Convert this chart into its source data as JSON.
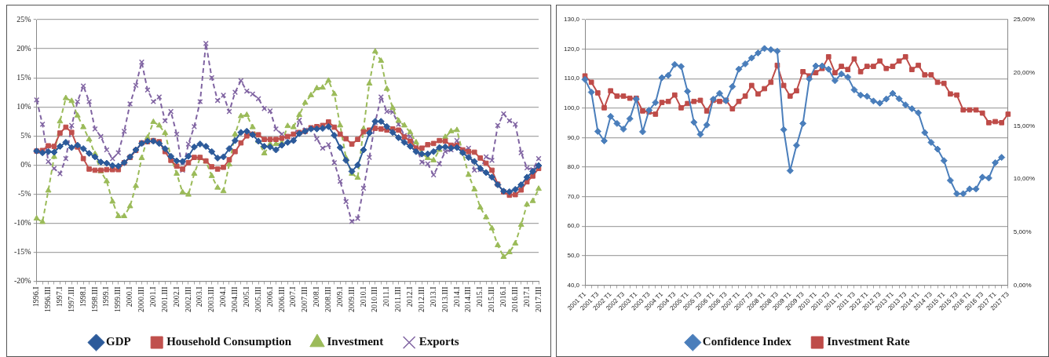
{
  "chart_data": [
    {
      "type": "line",
      "grid": "y",
      "legend": "bottom",
      "categories": [
        "1996.I",
        null,
        "1996.III",
        null,
        "1997.I",
        null,
        "1997.III",
        null,
        "1998.I",
        null,
        "1998.III",
        null,
        "1999.I",
        null,
        "1999.III",
        null,
        "2000.I",
        null,
        "2000.III",
        null,
        "2001.I",
        null,
        "2001.III",
        null,
        "2002.I",
        null,
        "2002.III",
        null,
        "2003.I",
        null,
        "2003.III",
        null,
        "2004.I",
        null,
        "2004.III",
        null,
        "2005.I",
        null,
        "2005.III",
        null,
        "2006.I",
        null,
        "2006.III",
        null,
        "2007.I",
        null,
        "2007.III",
        null,
        "2008.I",
        null,
        "2008.III",
        null,
        "2009.I",
        null,
        "2009.III",
        null,
        "2010.I",
        null,
        "2010.III",
        null,
        "2011.I",
        null,
        "2011.III",
        null,
        "2012.I",
        null,
        "2012.III",
        null,
        "2013.I",
        null,
        "2013.III",
        null,
        "2014.I",
        null,
        "2014.III",
        null,
        "2015.I",
        null,
        "2015.III",
        null,
        "2016.I",
        null,
        "2016.III",
        null,
        "2017.I",
        null,
        "2017.III"
      ],
      "ylim": [
        -20,
        25
      ],
      "yticks": [
        {
          "value": -20,
          "label": "-20%"
        },
        {
          "value": -15,
          "label": "-15%"
        },
        {
          "value": -10,
          "label": "-10%"
        },
        {
          "value": -5,
          "label": "-5%"
        },
        {
          "value": 0,
          "label": "0%"
        },
        {
          "value": 5,
          "label": "5%"
        },
        {
          "value": 10,
          "label": "10%"
        },
        {
          "value": 15,
          "label": "15%"
        },
        {
          "value": 20,
          "label": "20%"
        },
        {
          "value": 25,
          "label": "25%"
        }
      ],
      "series": [
        {
          "name": "GDP",
          "color": "#2c5a9a",
          "marker": "diamond",
          "line_style": "solid",
          "values": [
            2.4,
            2.1,
            2.3,
            2.2,
            3.2,
            3.9,
            3.0,
            3.4,
            2.8,
            2.0,
            1.4,
            0.5,
            0.3,
            -0.1,
            -0.2,
            0.4,
            1.4,
            2.6,
            3.7,
            4.1,
            4.1,
            3.7,
            2.8,
            1.5,
            0.7,
            0.6,
            1.5,
            3.1,
            3.6,
            3.2,
            2.3,
            1.2,
            1.4,
            2.8,
            4.2,
            5.6,
            5.8,
            5.2,
            4.1,
            3.2,
            3.1,
            2.6,
            3.4,
            3.9,
            4.2,
            5.4,
            5.8,
            6.2,
            6.2,
            6.3,
            6.6,
            5.1,
            3.0,
            0.8,
            -1.1,
            0.0,
            2.6,
            5.5,
            7.5,
            7.5,
            6.6,
            5.6,
            4.7,
            3.9,
            3.2,
            2.3,
            1.9,
            1.9,
            2.3,
            3.0,
            3.1,
            2.9,
            3.0,
            2.1,
            1.3,
            0.6,
            -0.6,
            -1.3,
            -2.1,
            -3.4,
            -4.5,
            -4.6,
            -4.2,
            -3.4,
            -2.1,
            -1.1,
            -0.1
          ]
        },
        {
          "name": "Household Consumption",
          "color": "#c0504d",
          "marker": "square",
          "line_style": "solid",
          "values": [
            2.4,
            2.5,
            3.3,
            3.2,
            5.5,
            6.5,
            5.6,
            3.1,
            1.1,
            -0.7,
            -0.9,
            -0.9,
            -0.8,
            -0.8,
            -0.8,
            0.4,
            1.3,
            2.5,
            3.8,
            4.0,
            4.2,
            4.0,
            2.3,
            0.8,
            -0.2,
            -0.7,
            0.4,
            1.3,
            1.3,
            0.7,
            -0.3,
            -0.7,
            -0.4,
            0.9,
            2.3,
            3.8,
            5.0,
            5.3,
            5.2,
            4.4,
            4.4,
            4.4,
            4.6,
            4.9,
            5.3,
            5.6,
            5.8,
            6.4,
            6.6,
            6.8,
            7.4,
            6.5,
            5.3,
            4.5,
            3.6,
            4.4,
            5.7,
            6.0,
            6.3,
            6.2,
            6.0,
            6.2,
            6.0,
            4.8,
            4.1,
            2.9,
            2.9,
            3.5,
            3.7,
            4.2,
            4.1,
            3.4,
            3.4,
            2.6,
            2.3,
            2.2,
            1.2,
            0.3,
            -0.9,
            -3.3,
            -4.6,
            -5.2,
            -5.1,
            -4.3,
            -2.9,
            -1.9,
            -0.6
          ]
        },
        {
          "name": "Investment",
          "color": "#9bbb59",
          "marker": "triangle",
          "line_style": "dashed",
          "values": [
            -9.2,
            -9.8,
            -4.4,
            1.4,
            7.5,
            11.5,
            11.0,
            8.5,
            6.5,
            4.4,
            1.9,
            -1.1,
            -2.8,
            -6.3,
            -8.8,
            -8.8,
            -7.1,
            -3.6,
            1.2,
            4.7,
            7.4,
            6.8,
            5.5,
            1.4,
            -1.5,
            -4.7,
            -5.1,
            -1.5,
            1.2,
            0.6,
            -1.9,
            -3.9,
            -4.5,
            0.1,
            5.3,
            8.4,
            8.6,
            6.5,
            4.1,
            2.0,
            3.6,
            3.6,
            3.8,
            6.7,
            6.5,
            8.6,
            10.7,
            12.0,
            13.2,
            13.3,
            14.5,
            12.2,
            6.8,
            1.2,
            -1.5,
            -2.2,
            6.2,
            14.0,
            19.5,
            17.9,
            13.1,
            9.8,
            7.6,
            6.8,
            5.6,
            3.9,
            2.0,
            1.2,
            0.8,
            2.6,
            4.8,
            5.8,
            6.0,
            2.1,
            -1.7,
            -4.2,
            -7.3,
            -9.0,
            -10.9,
            -13.8,
            -15.8,
            -15.0,
            -13.5,
            -10.3,
            -6.8,
            -6.2,
            -4.1
          ]
        },
        {
          "name": "Exports",
          "color": "#8064a2",
          "marker": "cross",
          "line_style": "dashed",
          "values": [
            11.2,
            7.0,
            0.6,
            -0.6,
            -1.5,
            1.1,
            6.8,
            10.9,
            13.6,
            10.9,
            6.2,
            4.9,
            2.6,
            1.1,
            2.1,
            5.8,
            10.5,
            13.7,
            17.7,
            12.9,
            10.9,
            11.7,
            7.6,
            9.2,
            5.3,
            -0.9,
            3.6,
            6.6,
            10.9,
            20.9,
            15.0,
            11.1,
            12.0,
            9.2,
            12.5,
            14.5,
            12.7,
            12.2,
            11.4,
            9.7,
            9.3,
            6.2,
            5.3,
            4.8,
            4.3,
            7.7,
            6.0,
            6.4,
            4.5,
            2.9,
            3.5,
            0.4,
            -2.8,
            -6.3,
            -9.7,
            -9.2,
            -4.0,
            1.3,
            7.3,
            11.7,
            9.2,
            9.1,
            7.0,
            5.1,
            4.9,
            3.1,
            0.5,
            0.2,
            -1.7,
            0.2,
            2.3,
            2.6,
            4.2,
            2.3,
            2.9,
            -0.9,
            -0.8,
            1.4,
            0.8,
            6.8,
            8.8,
            7.6,
            7.0,
            2.1,
            -0.5,
            -0.8,
            1.1
          ]
        }
      ]
    },
    {
      "type": "line",
      "grid": "y",
      "legend": "bottom",
      "categories": [
        "2001 T1",
        null,
        "2001 T3",
        null,
        "2002 T1",
        null,
        "2002 T3",
        null,
        "2003 T1",
        null,
        "2003 T3",
        null,
        "2004 T1",
        null,
        "2004 T3",
        null,
        "2005 T1",
        null,
        "2005 T3",
        null,
        "2006 T1",
        null,
        "2006 T3",
        null,
        "2007 T1",
        null,
        "2007 T3",
        null,
        "2008 T1",
        null,
        "2008 T3",
        null,
        "2009 T1",
        null,
        "2009 T3",
        null,
        "2010 T1",
        null,
        "2010 T3",
        null,
        "2011 T1",
        null,
        "2011 T3",
        null,
        "2012 T1",
        null,
        "2012 T3",
        null,
        "2013 T1",
        null,
        "2013 T3",
        null,
        "2014 T1",
        null,
        "2014 T3",
        null,
        "2015 T1",
        null,
        "2015 T3",
        null,
        "2016 T1",
        null,
        "2016 T3",
        null,
        "2017 T1",
        null,
        "2017 T3"
      ],
      "ylim": [
        40,
        130
      ],
      "yticks": [
        {
          "value": 40,
          "label": "40,0"
        },
        {
          "value": 50,
          "label": "50,0"
        },
        {
          "value": 60,
          "label": "60,0"
        },
        {
          "value": 70,
          "label": "70,0"
        },
        {
          "value": 80,
          "label": "80,0"
        },
        {
          "value": 90,
          "label": "90,0"
        },
        {
          "value": 100,
          "label": "100,0"
        },
        {
          "value": 110,
          "label": "110,0"
        },
        {
          "value": 120,
          "label": "120,0"
        },
        {
          "value": 130,
          "label": "130,0"
        }
      ],
      "y2lim": [
        0,
        25
      ],
      "y2ticks": [
        {
          "value": 0,
          "label": "0,00%"
        },
        {
          "value": 5,
          "label": "5,00%"
        },
        {
          "value": 10,
          "label": "10,00%"
        },
        {
          "value": 15,
          "label": "15,00%"
        },
        {
          "value": 20,
          "label": "20,00%"
        },
        {
          "value": 25,
          "label": "25,00%"
        }
      ],
      "series": [
        {
          "name": "Confidence Index",
          "color": "#4a7ebb",
          "marker": "diamond",
          "line_style": "solid",
          "values": [
            109.7,
            105.4,
            92.1,
            88.9,
            97.2,
            94.8,
            92.9,
            96.4,
            103.1,
            92.0,
            99.3,
            101.9,
            110.3,
            111.1,
            114.8,
            114.1,
            105.7,
            95.2,
            91.1,
            94.3,
            103.0,
            105.0,
            102.5,
            107.3,
            113.2,
            115.0,
            117.0,
            118.7,
            120.2,
            119.8,
            119.3,
            92.7,
            78.8,
            87.4,
            94.8,
            109.9,
            114.3,
            114.3,
            113.2,
            109.3,
            111.6,
            110.5,
            106.2,
            104.4,
            104.0,
            102.4,
            101.7,
            103.1,
            105.0,
            103.2,
            101.1,
            99.8,
            98.4,
            91.7,
            88.4,
            86.1,
            82.2,
            75.5,
            71.0,
            71.0,
            72.6,
            72.6,
            76.6,
            76.3,
            81.5,
            83.3,
            null
          ]
        },
        {
          "name": "Investment Rate",
          "color": "#be4b48",
          "marker": "square",
          "line_style": "solid",
          "axis": "y2",
          "values": [
            19.7,
            19.1,
            18.1,
            16.7,
            18.3,
            17.8,
            17.8,
            17.6,
            17.6,
            16.4,
            16.3,
            16.1,
            17.2,
            17.3,
            17.9,
            16.7,
            17.1,
            17.3,
            17.4,
            16.4,
            17.4,
            17.3,
            17.4,
            16.6,
            17.3,
            17.8,
            18.8,
            18.0,
            18.5,
            19.1,
            20.7,
            18.8,
            17.8,
            18.3,
            20.1,
            19.7,
            20.0,
            20.4,
            21.5,
            20.0,
            20.6,
            20.3,
            21.3,
            20.1,
            20.6,
            20.6,
            21.1,
            20.4,
            20.6,
            21.1,
            21.5,
            20.3,
            20.7,
            19.8,
            19.8,
            19.1,
            19.0,
            18.0,
            17.9,
            16.5,
            16.5,
            16.5,
            16.2,
            15.3,
            15.4,
            15.3,
            16.1
          ]
        }
      ]
    }
  ]
}
